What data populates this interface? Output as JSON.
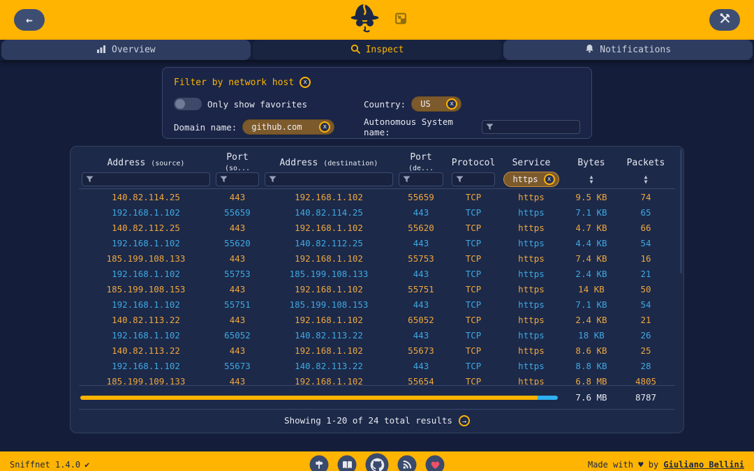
{
  "tabs": [
    {
      "label": "Overview",
      "icon": "chart-icon",
      "active": false
    },
    {
      "label": "Inspect",
      "icon": "magnifier-icon",
      "active": true
    },
    {
      "label": "Notifications",
      "icon": "bell-icon",
      "active": false
    }
  ],
  "filter_panel": {
    "title": "Filter by network host",
    "favorites_label": "Only show favorites",
    "favorites_on": false,
    "country_label": "Country:",
    "country_value": "US",
    "domain_label": "Domain name:",
    "domain_value": "github.com",
    "as_label": "Autonomous System name:",
    "as_value": ""
  },
  "table": {
    "columns": [
      {
        "main": "Address",
        "sub": "(source)"
      },
      {
        "main": "Port",
        "sub": "(so..."
      },
      {
        "main": "Address",
        "sub": "(destination)"
      },
      {
        "main": "Port",
        "sub": "(de..."
      },
      {
        "main": "Protocol",
        "sub": ""
      },
      {
        "main": "Service",
        "sub": "",
        "filter_value": "https"
      },
      {
        "main": "Bytes",
        "sub": ""
      },
      {
        "main": "Packets",
        "sub": ""
      }
    ],
    "rows": [
      {
        "src": "140.82.114.25",
        "sport": "443",
        "dst": "192.168.1.102",
        "dport": "55659",
        "proto": "TCP",
        "service": "https",
        "bytes": "9.5 KB",
        "packets": "74",
        "tone": "incoming"
      },
      {
        "src": "192.168.1.102",
        "sport": "55659",
        "dst": "140.82.114.25",
        "dport": "443",
        "proto": "TCP",
        "service": "https",
        "bytes": "7.1 KB",
        "packets": "65",
        "tone": "outgoing"
      },
      {
        "src": "140.82.112.25",
        "sport": "443",
        "dst": "192.168.1.102",
        "dport": "55620",
        "proto": "TCP",
        "service": "https",
        "bytes": "4.7 KB",
        "packets": "66",
        "tone": "incoming"
      },
      {
        "src": "192.168.1.102",
        "sport": "55620",
        "dst": "140.82.112.25",
        "dport": "443",
        "proto": "TCP",
        "service": "https",
        "bytes": "4.4 KB",
        "packets": "54",
        "tone": "outgoing"
      },
      {
        "src": "185.199.108.133",
        "sport": "443",
        "dst": "192.168.1.102",
        "dport": "55753",
        "proto": "TCP",
        "service": "https",
        "bytes": "7.4 KB",
        "packets": "16",
        "tone": "incoming"
      },
      {
        "src": "192.168.1.102",
        "sport": "55753",
        "dst": "185.199.108.133",
        "dport": "443",
        "proto": "TCP",
        "service": "https",
        "bytes": "2.4 KB",
        "packets": "21",
        "tone": "outgoing"
      },
      {
        "src": "185.199.108.153",
        "sport": "443",
        "dst": "192.168.1.102",
        "dport": "55751",
        "proto": "TCP",
        "service": "https",
        "bytes": "14 KB",
        "packets": "50",
        "tone": "incoming"
      },
      {
        "src": "192.168.1.102",
        "sport": "55751",
        "dst": "185.199.108.153",
        "dport": "443",
        "proto": "TCP",
        "service": "https",
        "bytes": "7.1 KB",
        "packets": "54",
        "tone": "outgoing"
      },
      {
        "src": "140.82.113.22",
        "sport": "443",
        "dst": "192.168.1.102",
        "dport": "65052",
        "proto": "TCP",
        "service": "https",
        "bytes": "2.4 KB",
        "packets": "21",
        "tone": "incoming"
      },
      {
        "src": "192.168.1.102",
        "sport": "65052",
        "dst": "140.82.113.22",
        "dport": "443",
        "proto": "TCP",
        "service": "https",
        "bytes": "18 KB",
        "packets": "26",
        "tone": "outgoing"
      },
      {
        "src": "140.82.113.22",
        "sport": "443",
        "dst": "192.168.1.102",
        "dport": "55673",
        "proto": "TCP",
        "service": "https",
        "bytes": "8.6 KB",
        "packets": "25",
        "tone": "incoming"
      },
      {
        "src": "192.168.1.102",
        "sport": "55673",
        "dst": "140.82.113.22",
        "dport": "443",
        "proto": "TCP",
        "service": "https",
        "bytes": "8.8 KB",
        "packets": "28",
        "tone": "outgoing"
      },
      {
        "src": "185.199.109.133",
        "sport": "443",
        "dst": "192.168.1.102",
        "dport": "55654",
        "proto": "TCP",
        "service": "https",
        "bytes": "6.8 MB",
        "packets": "4805",
        "tone": "incoming"
      }
    ],
    "totals": {
      "bytes": "7.6 MB",
      "packets": "8787",
      "bar_incoming_pct": 95.7,
      "bar_outgoing_pct": 4.3
    },
    "pagination": "Showing 1-20 of 24 total results"
  },
  "icons": {
    "back_arrow": "←",
    "close_x": "x",
    "sort_up": "▲",
    "sort_down": "▼",
    "pager_arrow": "→"
  },
  "colors": {
    "accent": "#ffb401",
    "incoming": "#efa73e",
    "outgoing": "#3ea8e3",
    "bar_outgoing": "#2fb1f0"
  },
  "footer": {
    "version": "Sniffnet 1.4.0",
    "version_check": "✔",
    "made_with": "Made with",
    "heart": "♥",
    "by": "by",
    "author": "Giuliano Bellini"
  }
}
